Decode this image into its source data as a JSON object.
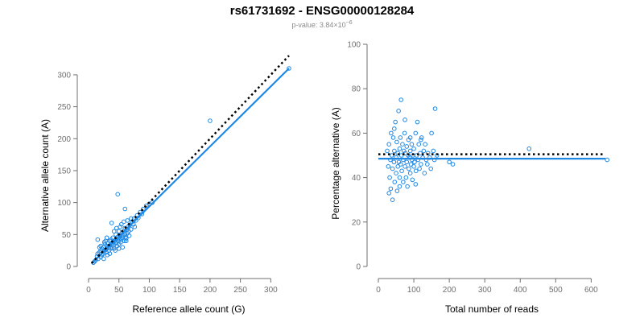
{
  "title": "rs61731692 - ENSG00000128284",
  "subtitle": {
    "prefix": "p-value: 3.84×10",
    "exponent": "−6"
  },
  "colors": {
    "points": "#1e88e5",
    "fit": "#1e88e5",
    "reference": "#000000",
    "axis": "#6f6f6f"
  },
  "chart_data": [
    {
      "type": "scatter",
      "xlabel": "Reference allele count (G)",
      "ylabel": "Alternative allele count (A)",
      "xlim": [
        0,
        330
      ],
      "ylim": [
        0,
        310
      ],
      "xticks": [
        0,
        50,
        100,
        150,
        200,
        250,
        300
      ],
      "yticks": [
        0,
        50,
        100,
        150,
        200,
        250,
        300
      ],
      "fit_line": {
        "x": [
          5,
          330
        ],
        "y": [
          4.7,
          310
        ]
      },
      "reference_line": {
        "x": [
          5,
          330
        ],
        "y": [
          5,
          330
        ]
      },
      "points": [
        [
          12,
          10
        ],
        [
          14,
          16
        ],
        [
          15,
          20
        ],
        [
          16,
          12
        ],
        [
          18,
          22
        ],
        [
          20,
          15
        ],
        [
          20,
          25
        ],
        [
          22,
          18
        ],
        [
          22,
          28
        ],
        [
          24,
          20
        ],
        [
          25,
          30
        ],
        [
          26,
          24
        ],
        [
          27,
          35
        ],
        [
          28,
          26
        ],
        [
          29,
          22
        ],
        [
          30,
          32
        ],
        [
          30,
          28
        ],
        [
          31,
          18
        ],
        [
          32,
          36
        ],
        [
          33,
          30
        ],
        [
          34,
          25
        ],
        [
          35,
          40
        ],
        [
          35,
          33
        ],
        [
          36,
          28
        ],
        [
          37,
          42
        ],
        [
          38,
          35
        ],
        [
          39,
          30
        ],
        [
          40,
          38
        ],
        [
          40,
          45
        ],
        [
          41,
          33
        ],
        [
          42,
          28
        ],
        [
          43,
          40
        ],
        [
          44,
          36
        ],
        [
          45,
          50
        ],
        [
          45,
          42
        ],
        [
          46,
          38
        ],
        [
          47,
          32
        ],
        [
          48,
          46
        ],
        [
          49,
          40
        ],
        [
          50,
          55
        ],
        [
          50,
          35
        ],
        [
          51,
          44
        ],
        [
          52,
          48
        ],
        [
          53,
          38
        ],
        [
          54,
          42
        ],
        [
          55,
          52
        ],
        [
          55,
          45
        ],
        [
          56,
          30
        ],
        [
          57,
          48
        ],
        [
          58,
          55
        ],
        [
          59,
          40
        ],
        [
          60,
          60
        ],
        [
          60,
          50
        ],
        [
          61,
          46
        ],
        [
          62,
          44
        ],
        [
          63,
          58
        ],
        [
          64,
          52
        ],
        [
          65,
          62
        ],
        [
          66,
          55
        ],
        [
          67,
          48
        ],
        [
          68,
          65
        ],
        [
          70,
          58
        ],
        [
          72,
          70
        ],
        [
          74,
          66
        ],
        [
          75,
          75
        ],
        [
          78,
          72
        ],
        [
          80,
          80
        ],
        [
          82,
          76
        ],
        [
          85,
          85
        ],
        [
          88,
          82
        ],
        [
          90,
          90
        ],
        [
          95,
          95
        ],
        [
          100,
          98
        ],
        [
          105,
          100
        ],
        [
          200,
          228
        ],
        [
          330,
          310
        ],
        [
          48,
          113
        ],
        [
          60,
          90
        ],
        [
          38,
          68
        ],
        [
          26,
          38
        ],
        [
          18,
          30
        ],
        [
          30,
          45
        ],
        [
          42,
          55
        ],
        [
          52,
          62
        ],
        [
          58,
          70
        ],
        [
          70,
          75
        ],
        [
          15,
          42
        ],
        [
          25,
          12
        ],
        [
          35,
          20
        ],
        [
          44,
          25
        ],
        [
          10,
          8
        ],
        [
          8,
          6
        ],
        [
          20,
          32
        ],
        [
          28,
          40
        ],
        [
          46,
          60
        ],
        [
          54,
          66
        ],
        [
          64,
          72
        ],
        [
          76,
          62
        ],
        [
          62,
          40
        ],
        [
          50,
          28
        ]
      ]
    },
    {
      "type": "scatter",
      "xlabel": "Total number of reads",
      "ylabel": "Percentage alternative (A)",
      "xlim": [
        0,
        640
      ],
      "ylim": [
        0,
        100
      ],
      "xticks": [
        0,
        100,
        200,
        300,
        400,
        500,
        600
      ],
      "yticks": [
        0,
        20,
        40,
        60,
        80,
        100
      ],
      "fit_line": {
        "x": [
          0,
          640
        ],
        "y": [
          48.5,
          48.5
        ]
      },
      "reference_line": {
        "x": [
          0,
          640
        ],
        "y": [
          50.5,
          50.5
        ]
      },
      "points": [
        [
          25,
          52
        ],
        [
          28,
          45
        ],
        [
          30,
          55
        ],
        [
          32,
          40
        ],
        [
          34,
          48
        ],
        [
          35,
          35
        ],
        [
          36,
          60
        ],
        [
          38,
          50
        ],
        [
          40,
          44
        ],
        [
          40,
          30
        ],
        [
          42,
          58
        ],
        [
          44,
          47
        ],
        [
          45,
          52
        ],
        [
          46,
          38
        ],
        [
          48,
          65
        ],
        [
          50,
          49
        ],
        [
          50,
          42
        ],
        [
          52,
          56
        ],
        [
          53,
          34
        ],
        [
          55,
          51
        ],
        [
          55,
          45
        ],
        [
          57,
          70
        ],
        [
          58,
          47
        ],
        [
          60,
          53
        ],
        [
          60,
          40
        ],
        [
          62,
          58
        ],
        [
          63,
          46
        ],
        [
          64,
          75
        ],
        [
          65,
          50
        ],
        [
          66,
          43
        ],
        [
          68,
          55
        ],
        [
          70,
          48
        ],
        [
          70,
          38
        ],
        [
          72,
          52
        ],
        [
          74,
          60
        ],
        [
          75,
          45
        ],
        [
          76,
          51
        ],
        [
          78,
          40
        ],
        [
          80,
          54
        ],
        [
          80,
          47
        ],
        [
          82,
          36
        ],
        [
          84,
          50
        ],
        [
          85,
          57
        ],
        [
          86,
          44
        ],
        [
          88,
          49
        ],
        [
          90,
          52
        ],
        [
          90,
          42
        ],
        [
          92,
          46
        ],
        [
          94,
          55
        ],
        [
          95,
          48
        ],
        [
          96,
          39
        ],
        [
          98,
          50
        ],
        [
          100,
          53
        ],
        [
          100,
          45
        ],
        [
          102,
          47
        ],
        [
          105,
          60
        ],
        [
          106,
          43
        ],
        [
          108,
          50
        ],
        [
          110,
          65
        ],
        [
          112,
          48
        ],
        [
          114,
          55
        ],
        [
          116,
          44
        ],
        [
          118,
          51
        ],
        [
          120,
          46
        ],
        [
          122,
          58
        ],
        [
          125,
          49
        ],
        [
          128,
          52
        ],
        [
          130,
          42
        ],
        [
          132,
          55
        ],
        [
          135,
          48
        ],
        [
          138,
          46
        ],
        [
          140,
          51
        ],
        [
          145,
          49
        ],
        [
          148,
          44
        ],
        [
          150,
          60
        ],
        [
          155,
          52
        ],
        [
          158,
          48
        ],
        [
          160,
          71
        ],
        [
          165,
          50
        ],
        [
          200,
          47
        ],
        [
          210,
          46
        ],
        [
          425,
          53
        ],
        [
          645,
          48
        ],
        [
          30,
          33
        ],
        [
          45,
          62
        ],
        [
          60,
          36
        ],
        [
          75,
          66
        ],
        [
          90,
          58
        ],
        [
          105,
          37
        ],
        [
          120,
          57
        ]
      ]
    }
  ]
}
